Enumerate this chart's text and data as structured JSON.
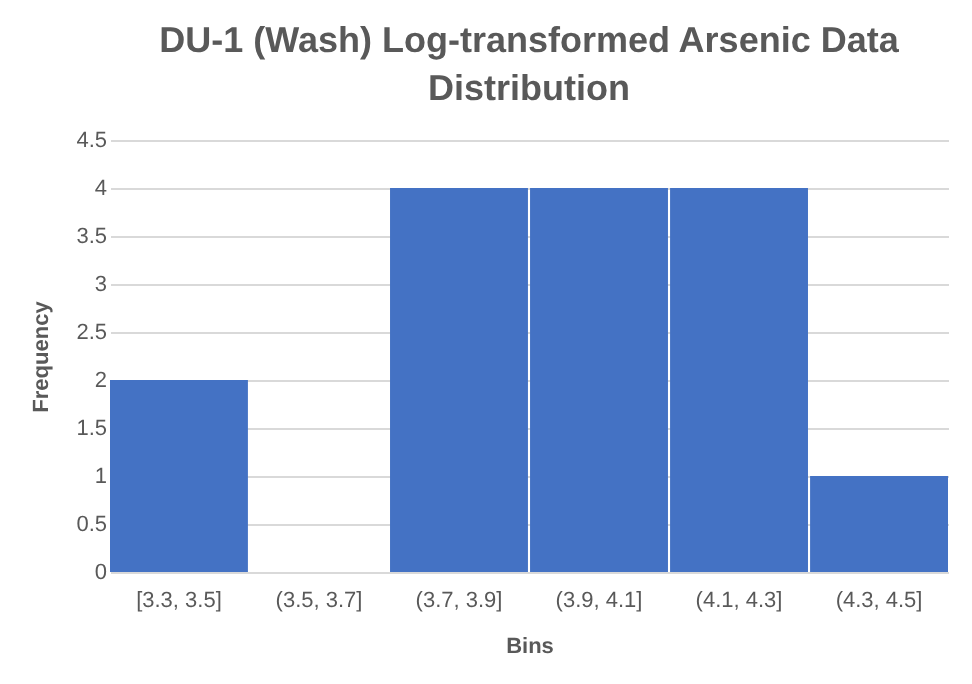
{
  "chart_data": {
    "type": "bar",
    "title": "DU-1 (Wash) Log-transformed Arsenic Data Distribution",
    "xlabel": "Bins",
    "ylabel": "Frequency",
    "categories": [
      "[3.3, 3.5]",
      "(3.5, 3.7]",
      "(3.7, 3.9]",
      "(3.9, 4.1]",
      "(4.1, 4.3]",
      "(4.3, 4.5]"
    ],
    "values": [
      2,
      0,
      4,
      4,
      4,
      1
    ],
    "color": "#4472c4",
    "ylim": [
      0,
      4.5
    ],
    "yticks": [
      0,
      0.5,
      1,
      1.5,
      2,
      2.5,
      3,
      3.5,
      4,
      4.5
    ],
    "grid": "y"
  }
}
